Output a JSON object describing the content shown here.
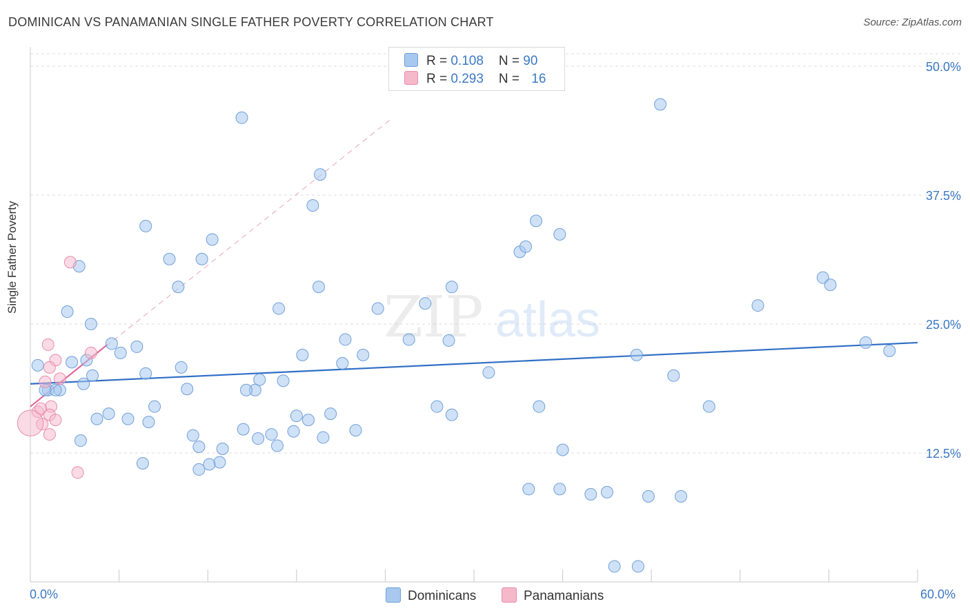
{
  "header": {
    "title": "DOMINICAN VS PANAMANIAN SINGLE FATHER POVERTY CORRELATION CHART",
    "source": "Source: ZipAtlas.com"
  },
  "legend": {
    "rows": [
      {
        "r_label": "R = ",
        "r_value": "0.108",
        "n_label": "N = ",
        "n_value": "90",
        "color": "#a8c8ef"
      },
      {
        "r_label": "R = ",
        "r_value": "0.293",
        "n_label": "N = ",
        "n_value": "16",
        "color": "#f6b8cb"
      }
    ]
  },
  "series_labels": {
    "dominicans": "Dominicans",
    "panamanians": "Panamanians"
  },
  "watermark": {
    "zip": "ZIP",
    "atlas": "atlas"
  },
  "chart_data": {
    "type": "scatter",
    "title": "DOMINICAN VS PANAMANIAN SINGLE FATHER POVERTY CORRELATION CHART",
    "xlabel": "",
    "ylabel": "Single Father Poverty",
    "xlim": [
      0,
      60
    ],
    "ylim": [
      0,
      50
    ],
    "x_tick_labels": [
      "0.0%",
      "60.0%"
    ],
    "y_ticks": [
      12.5,
      25.0,
      37.5,
      50.0
    ],
    "y_tick_labels": [
      "12.5%",
      "25.0%",
      "37.5%",
      "50.0%"
    ],
    "grid": true,
    "legend_position": "top-center",
    "colors": {
      "dominicans": "#a8c8ef",
      "dominicans_line": "#2f6fc6",
      "panamanians": "#f6b8cb",
      "panamanians_line": "#e0679a"
    },
    "series": [
      {
        "name": "Dominicans",
        "trend": {
          "x": [
            0,
            60
          ],
          "y": [
            19.2,
            23.2
          ]
        },
        "x": [
          42.6,
          14.3,
          19.6,
          19.1,
          7.8,
          34.2,
          35.8,
          12.3,
          11.6,
          33.1,
          33.5,
          3.3,
          9.4,
          28.5,
          19.5,
          10.0,
          26.7,
          53.6,
          54.1,
          16.8,
          2.5,
          23.5,
          49.2,
          4.1,
          21.3,
          5.5,
          7.2,
          6.1,
          18.4,
          3.8,
          2.8,
          0.5,
          1.2,
          2.0,
          1.7,
          1.0,
          3.6,
          4.2,
          7.8,
          10.2,
          15.5,
          21.1,
          22.5,
          25.6,
          28.3,
          31.0,
          41.0,
          43.5,
          58.1,
          56.5,
          27.5,
          20.3,
          34.4,
          45.9,
          8.4,
          6.6,
          10.6,
          15.2,
          17.1,
          14.6,
          18.0,
          18.8,
          17.8,
          11.0,
          3.4,
          4.5,
          8.0,
          5.3,
          11.4,
          13.0,
          19.8,
          22.0,
          28.5,
          36.0,
          12.8,
          12.1,
          14.4,
          16.3,
          16.7,
          15.4,
          11.4,
          7.6,
          33.7,
          35.8,
          37.9,
          39.5,
          41.1,
          44.0,
          39.0,
          41.8
        ],
        "y": [
          46.3,
          45.0,
          39.5,
          36.5,
          34.5,
          35.0,
          33.7,
          33.2,
          31.3,
          32.0,
          32.5,
          30.6,
          31.3,
          28.6,
          28.6,
          28.6,
          27.0,
          29.5,
          28.8,
          26.5,
          26.2,
          26.5,
          26.8,
          25.0,
          23.5,
          23.1,
          22.8,
          22.2,
          22.0,
          21.5,
          21.3,
          21.0,
          18.6,
          18.6,
          18.6,
          18.6,
          19.2,
          20.0,
          20.2,
          20.8,
          19.6,
          21.2,
          22.0,
          23.5,
          23.4,
          20.3,
          22.0,
          20.0,
          22.4,
          23.2,
          17.0,
          16.3,
          17.0,
          17.0,
          17.0,
          15.8,
          18.7,
          18.6,
          19.5,
          18.6,
          16.1,
          15.7,
          14.6,
          14.2,
          13.7,
          15.8,
          15.5,
          16.3,
          13.1,
          12.9,
          14.0,
          14.7,
          16.2,
          12.8,
          11.6,
          11.4,
          14.8,
          14.3,
          13.2,
          13.9,
          10.9,
          11.5,
          9.0,
          9.0,
          8.5,
          1.5,
          1.5,
          8.3,
          8.7,
          8.3
        ],
        "size": [
          1,
          1,
          1,
          1,
          1,
          1,
          1,
          1,
          1,
          1,
          1,
          1,
          1,
          1,
          1,
          1,
          1,
          1,
          1,
          1,
          1,
          1,
          1,
          1,
          1,
          1,
          1,
          1,
          1,
          1,
          1,
          1,
          1,
          1,
          1,
          1,
          1,
          1,
          1,
          1,
          1,
          1,
          1,
          1,
          1,
          1,
          1,
          1,
          1,
          1,
          1,
          1,
          1,
          1,
          1,
          1,
          1,
          1,
          1,
          1,
          1,
          1,
          1,
          1,
          1,
          1,
          1,
          1,
          1,
          1,
          1,
          1,
          1,
          1,
          1,
          1,
          1,
          1,
          1,
          1,
          1,
          1,
          1,
          1,
          1,
          1,
          1,
          1,
          1,
          1
        ]
      },
      {
        "name": "Panamanians",
        "trend": {
          "x": [
            0,
            5.2
          ],
          "y": [
            17.0,
            23.0
          ]
        },
        "trend_extended": {
          "x": [
            0,
            24.5
          ],
          "y": [
            17.0,
            45.0
          ]
        },
        "x": [
          2.7,
          1.2,
          4.1,
          1.7,
          1.3,
          2.0,
          1.0,
          1.4,
          0.5,
          0.7,
          1.3,
          1.7,
          0.8,
          1.3,
          3.2,
          0.0
        ],
        "y": [
          31.0,
          23.0,
          22.2,
          21.5,
          20.8,
          19.7,
          19.4,
          17.0,
          16.5,
          16.8,
          16.2,
          15.7,
          15.3,
          14.3,
          10.6,
          15.4
        ],
        "size": [
          1,
          1,
          1,
          1,
          1,
          1,
          1,
          1,
          1,
          1,
          1,
          1,
          1,
          1,
          1,
          2.2
        ]
      }
    ]
  }
}
